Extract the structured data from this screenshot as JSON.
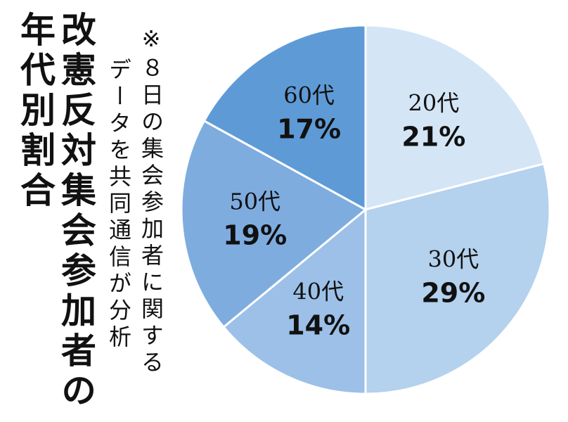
{
  "chart_data": {
    "type": "pie",
    "title_lines": [
      "改憲反対集会参加者の",
      "年代別割合"
    ],
    "subtitle_lines": [
      "※８日の集会参加者に関する",
      "データを共同通信が分析"
    ],
    "categories": [
      "20代",
      "30代",
      "40代",
      "50代",
      "60代"
    ],
    "values": [
      21,
      29,
      14,
      19,
      17
    ],
    "value_labels": [
      "21%",
      "29%",
      "14%",
      "19%",
      "17%"
    ],
    "colors": [
      "#d4e5f6",
      "#b4d1ee",
      "#9cc0e7",
      "#7eacdf",
      "#5e9bd6"
    ]
  }
}
